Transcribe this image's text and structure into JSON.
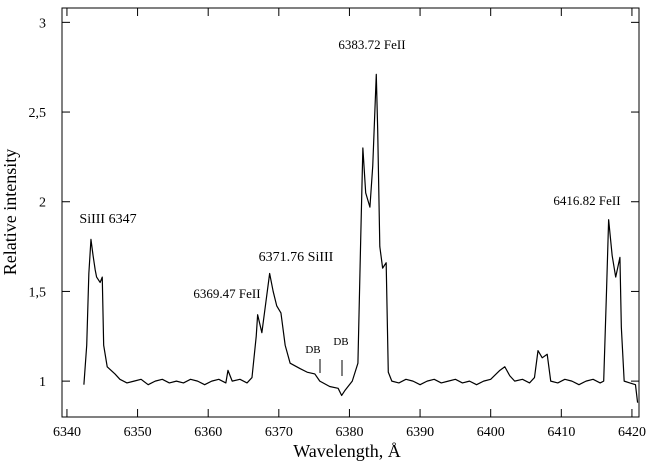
{
  "chart_data": {
    "type": "line",
    "x_label": "Wavelength, Å",
    "y_label": "Relative intensity",
    "annotations": [
      "SiIII 6347",
      "6369.47 FeII",
      "6371.76 SiIII",
      "6383.72 FeII",
      "6416.82 FeII",
      "DB",
      "DB"
    ],
    "color": "#000000",
    "x": [
      6342.4,
      6342.8,
      6343.1,
      6343.4,
      6343.7,
      6344.0,
      6344.2,
      6344.7,
      6345.0,
      6345.2,
      6345.7,
      6346.8,
      6347.5,
      6348.5,
      6349.5,
      6350.5,
      6351.5,
      6352.5,
      6353.5,
      6354.5,
      6355.5,
      6356.5,
      6357.5,
      6358.5,
      6359.5,
      6360.5,
      6361.5,
      6362.5,
      6362.8,
      6363.4,
      6364.5,
      6365.5,
      6366.2,
      6366.8,
      6367.0,
      6367.6,
      6368.2,
      6368.7,
      6369.2,
      6369.7,
      6370.3,
      6370.9,
      6371.6,
      6373.0,
      6374.0,
      6375.1,
      6375.8,
      6377.2,
      6378.4,
      6378.9,
      6379.4,
      6380.4,
      6381.2,
      6381.6,
      6381.9,
      6382.3,
      6382.9,
      6383.3,
      6383.8,
      6384.0,
      6384.3,
      6384.7,
      6385.2,
      6385.5,
      6386.0,
      6387.0,
      6388.0,
      6389.0,
      6390.0,
      6391.0,
      6392.0,
      6393.0,
      6394.0,
      6395.0,
      6396.0,
      6397.0,
      6398.0,
      6399.0,
      6400.0,
      6401.3,
      6402.0,
      6402.7,
      6403.4,
      6404.5,
      6405.5,
      6406.2,
      6406.7,
      6407.3,
      6408.0,
      6408.5,
      6409.5,
      6410.5,
      6411.5,
      6412.5,
      6413.5,
      6414.5,
      6415.5,
      6416.0,
      6416.4,
      6416.7,
      6417.2,
      6417.7,
      6418.3,
      6418.5,
      6418.9,
      6419.7,
      6420.5,
      6420.8
    ],
    "values": [
      0.98,
      1.2,
      1.6,
      1.79,
      1.7,
      1.62,
      1.58,
      1.55,
      1.58,
      1.2,
      1.08,
      1.04,
      1.01,
      0.99,
      1.0,
      1.01,
      0.98,
      1.0,
      1.01,
      0.99,
      1.0,
      0.99,
      1.01,
      1.0,
      0.98,
      1.0,
      1.01,
      0.99,
      1.06,
      1.0,
      1.01,
      0.99,
      1.02,
      1.25,
      1.37,
      1.27,
      1.45,
      1.6,
      1.5,
      1.42,
      1.38,
      1.2,
      1.1,
      1.07,
      1.05,
      1.04,
      1.0,
      0.97,
      0.96,
      0.92,
      0.95,
      1.0,
      1.1,
      1.8,
      2.3,
      2.05,
      1.97,
      2.2,
      2.71,
      2.4,
      1.75,
      1.63,
      1.66,
      1.05,
      1.0,
      0.99,
      1.01,
      1.0,
      0.98,
      1.0,
      1.01,
      0.99,
      1.0,
      1.01,
      0.99,
      1.0,
      0.98,
      1.0,
      1.01,
      1.06,
      1.08,
      1.03,
      1.0,
      1.01,
      0.99,
      1.02,
      1.17,
      1.13,
      1.15,
      1.0,
      0.99,
      1.01,
      1.0,
      0.98,
      1.0,
      1.01,
      0.99,
      1.0,
      1.5,
      1.9,
      1.7,
      1.58,
      1.69,
      1.3,
      1.0,
      0.99,
      0.98,
      0.88
    ],
    "xlim": [
      6339.3,
      6421
    ],
    "ylim": [
      0.8,
      3.08
    ],
    "xticks": [
      6340,
      6350,
      6360,
      6370,
      6380,
      6390,
      6400,
      6410,
      6420
    ],
    "yticks": [
      1,
      {
        "value": 1.5,
        "label": "1,5"
      },
      2,
      {
        "value": 2.5,
        "label": "2,5"
      },
      3
    ]
  }
}
